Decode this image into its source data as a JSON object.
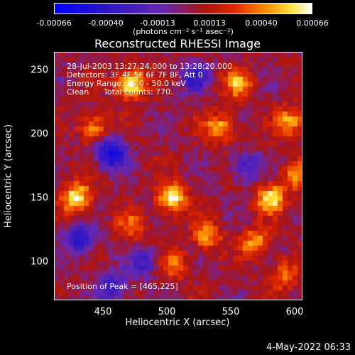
{
  "colorbar": {
    "ticks": [
      "-0.00066",
      "-0.00040",
      "-0.00013",
      "0.00013",
      "0.00040",
      "0.00066"
    ],
    "units": "(photons cm⁻² s⁻¹ asec⁻²)"
  },
  "annotations": {
    "time_range": "28-Jul-2003 13:27:24.000 to 13:28:20.000",
    "detectors": "Detectors: 3F 4F 5F 6F 7F 8F, Att 0",
    "energy": "Energy Range: 25.0 - 50.0 keV",
    "method": "Clean",
    "counts": "Total counts: 770.",
    "peak": "Position of Peak = [465,225]"
  },
  "footer_date": "4-May-2022 06:33",
  "colors": {
    "low": "#0000ff",
    "mid": "#6a28b0",
    "high": "#ffffff"
  },
  "chart_data": {
    "type": "heatmap",
    "title": "Reconstructed RHESSI Image",
    "xlabel": "Heliocentric X (arcsec)",
    "ylabel": "Heliocentric Y (arcsec)",
    "xlim": [
      410,
      605
    ],
    "ylim": [
      70,
      265
    ],
    "x_ticks": [
      "450",
      "500",
      "550",
      "600"
    ],
    "y_ticks": [
      "100",
      "150",
      "200",
      "250"
    ],
    "value_range": [
      -0.00066,
      0.00066
    ],
    "hot_spots": [
      {
        "x": 470,
        "y": 240,
        "v": 0.00066
      },
      {
        "x": 428,
        "y": 150,
        "v": 0.0006
      },
      {
        "x": 502,
        "y": 150,
        "v": 0.00058
      },
      {
        "x": 440,
        "y": 205,
        "v": 0.0004
      },
      {
        "x": 540,
        "y": 205,
        "v": 0.00045
      },
      {
        "x": 555,
        "y": 240,
        "v": 0.0004
      },
      {
        "x": 580,
        "y": 150,
        "v": 0.00052
      },
      {
        "x": 596,
        "y": 210,
        "v": 0.00045
      },
      {
        "x": 530,
        "y": 120,
        "v": 0.0004
      },
      {
        "x": 568,
        "y": 115,
        "v": 0.00042
      },
      {
        "x": 600,
        "y": 168,
        "v": 0.00035
      },
      {
        "x": 505,
        "y": 98,
        "v": 0.0003
      },
      {
        "x": 470,
        "y": 128,
        "v": 0.00028
      },
      {
        "x": 590,
        "y": 90,
        "v": 0.00032
      }
    ],
    "cold_spots": [
      {
        "x": 455,
        "y": 185,
        "v": -0.00066
      },
      {
        "x": 430,
        "y": 118,
        "v": -0.0005
      },
      {
        "x": 455,
        "y": 80,
        "v": -0.00045
      },
      {
        "x": 520,
        "y": 245,
        "v": -0.0004
      },
      {
        "x": 560,
        "y": 175,
        "v": -0.00035
      },
      {
        "x": 480,
        "y": 100,
        "v": -0.00035
      }
    ]
  }
}
